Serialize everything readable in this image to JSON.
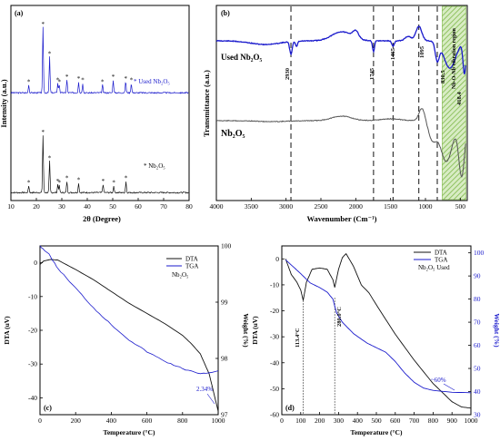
{
  "colors": {
    "blue": "#1a1acc",
    "black": "#111111",
    "grey": "#555555",
    "green": "#7fb84a",
    "pctblue": "#1a1acc"
  },
  "chart_data": [
    {
      "id": "a",
      "type": "line",
      "panel_label": "(a)",
      "xlabel": "2θ (Degree)",
      "ylabel": "Intensity (a.u.)",
      "xlim": [
        10,
        80
      ],
      "xticks": [
        "10",
        "20",
        "30",
        "40",
        "50",
        "60",
        "70",
        "80"
      ],
      "series": [
        {
          "name": "Used Nb₂O₅",
          "color": "#1a1acc"
        },
        {
          "name": "Nb₂O₅",
          "color": "#111111"
        }
      ],
      "legend": [
        "* Used Nb₂O₅",
        "* Nb₂O₅"
      ],
      "peaks_used": [
        17,
        22.6,
        25.2,
        28.4,
        29,
        32,
        36.6,
        38.2,
        46,
        50.2,
        55.1,
        57.3
      ],
      "peaks_pure": [
        17,
        22.6,
        25.2,
        28.4,
        29,
        32,
        36.6,
        46.2,
        50.4,
        55.2
      ]
    },
    {
      "id": "b",
      "type": "line",
      "panel_label": "(b)",
      "xlabel": "Wavenumber (Cm⁻¹)",
      "ylabel": "Transmittance (a.u.)",
      "xlim": [
        4000,
        400
      ],
      "xticks": [
        "4000",
        "3500",
        "3000",
        "2500",
        "2000",
        "1500",
        "1000",
        "500"
      ],
      "series": [
        {
          "name": "Used Nb₂O₅",
          "color": "#1a1acc"
        },
        {
          "name": "Nb₂O₅",
          "color": "#555555"
        }
      ],
      "dashed_lines": [
        2930,
        1745,
        1465,
        1095,
        830.5
      ],
      "peak_labels": [
        "2930",
        "1745",
        "1465",
        "1095",
        "830.5",
        "418.4"
      ],
      "shaded_region": {
        "from": 760,
        "to": 420,
        "label": "Nb-O-Nb vibration region"
      }
    },
    {
      "id": "c",
      "type": "line",
      "panel_label": "(c)",
      "xlabel": "Temperature (°C)",
      "ylabel": "DTA (uV)",
      "y2label": "Weight (%)",
      "xlim": [
        0,
        1000
      ],
      "ylim": [
        -45,
        5
      ],
      "y2lim": [
        97,
        100
      ],
      "xticks": [
        "0",
        "200",
        "400",
        "600",
        "800",
        "1000"
      ],
      "yticks": [
        "0",
        "-10",
        "-20",
        "-30",
        "-40"
      ],
      "y2ticks": [
        "100",
        "99",
        "98",
        "97"
      ],
      "legend": [
        "DTA",
        "TGA"
      ],
      "sample_label": "Nb₂O₅",
      "annotation": "2.34%",
      "dta": [
        [
          0,
          -0.5
        ],
        [
          20,
          0.5
        ],
        [
          60,
          1
        ],
        [
          100,
          0.8
        ],
        [
          200,
          -2
        ],
        [
          300,
          -5
        ],
        [
          400,
          -8.5
        ],
        [
          500,
          -12
        ],
        [
          600,
          -15
        ],
        [
          700,
          -18
        ],
        [
          800,
          -21.5
        ],
        [
          850,
          -24
        ],
        [
          900,
          -27
        ],
        [
          950,
          -33
        ],
        [
          1000,
          -44
        ]
      ],
      "tga": [
        [
          0,
          100
        ],
        [
          50,
          99.85
        ],
        [
          100,
          99.6
        ],
        [
          200,
          99.25
        ],
        [
          300,
          98.9
        ],
        [
          400,
          98.6
        ],
        [
          500,
          98.33
        ],
        [
          600,
          98.12
        ],
        [
          700,
          97.95
        ],
        [
          800,
          97.82
        ],
        [
          900,
          97.72
        ],
        [
          1000,
          97.78
        ]
      ]
    },
    {
      "id": "d",
      "type": "line",
      "panel_label": "(d)",
      "xlabel": "Temperature (°C)",
      "ylabel": "DTA (uV)",
      "y2label": "Weight (%)",
      "xlim": [
        0,
        1000
      ],
      "ylim": [
        -60,
        5
      ],
      "y2lim": [
        30,
        100
      ],
      "xticks": [
        "0",
        "100",
        "200",
        "300",
        "400",
        "500",
        "600",
        "700",
        "800",
        "900",
        "1000"
      ],
      "yticks": [
        "0",
        "-10",
        "-20",
        "-30",
        "-40",
        "-50",
        "-60"
      ],
      "y2ticks": [
        "100",
        "90",
        "80",
        "70",
        "60",
        "50",
        "40",
        "30"
      ],
      "legend": [
        "DTA",
        "TGA"
      ],
      "sample_label": "Nb₂O₅ Used",
      "peak_labels": [
        "113.4°C",
        "280.0°C"
      ],
      "peak_x": [
        113.4,
        280
      ],
      "annotation": "~60%",
      "dta": [
        [
          20,
          0
        ],
        [
          50,
          -6
        ],
        [
          80,
          -9
        ],
        [
          100,
          -12
        ],
        [
          113,
          -16
        ],
        [
          130,
          -9
        ],
        [
          160,
          -4
        ],
        [
          200,
          -3.5
        ],
        [
          240,
          -4
        ],
        [
          270,
          -8
        ],
        [
          280,
          -11
        ],
        [
          300,
          -4
        ],
        [
          320,
          0.5
        ],
        [
          340,
          2
        ],
        [
          380,
          -3
        ],
        [
          420,
          -10
        ],
        [
          460,
          -13
        ],
        [
          520,
          -20
        ],
        [
          600,
          -29
        ],
        [
          700,
          -39
        ],
        [
          800,
          -48
        ],
        [
          900,
          -55
        ],
        [
          950,
          -57
        ],
        [
          1000,
          -57.5
        ]
      ],
      "tga": [
        [
          20,
          97
        ],
        [
          60,
          94
        ],
        [
          100,
          91
        ],
        [
          150,
          87
        ],
        [
          200,
          85
        ],
        [
          240,
          83
        ],
        [
          270,
          80
        ],
        [
          290,
          74
        ],
        [
          320,
          70
        ],
        [
          380,
          65
        ],
        [
          450,
          61
        ],
        [
          500,
          59
        ],
        [
          550,
          57
        ],
        [
          600,
          53
        ],
        [
          650,
          48
        ],
        [
          700,
          44
        ],
        [
          750,
          41.5
        ],
        [
          800,
          40.5
        ],
        [
          900,
          39.7
        ],
        [
          1000,
          39.5
        ]
      ]
    }
  ]
}
